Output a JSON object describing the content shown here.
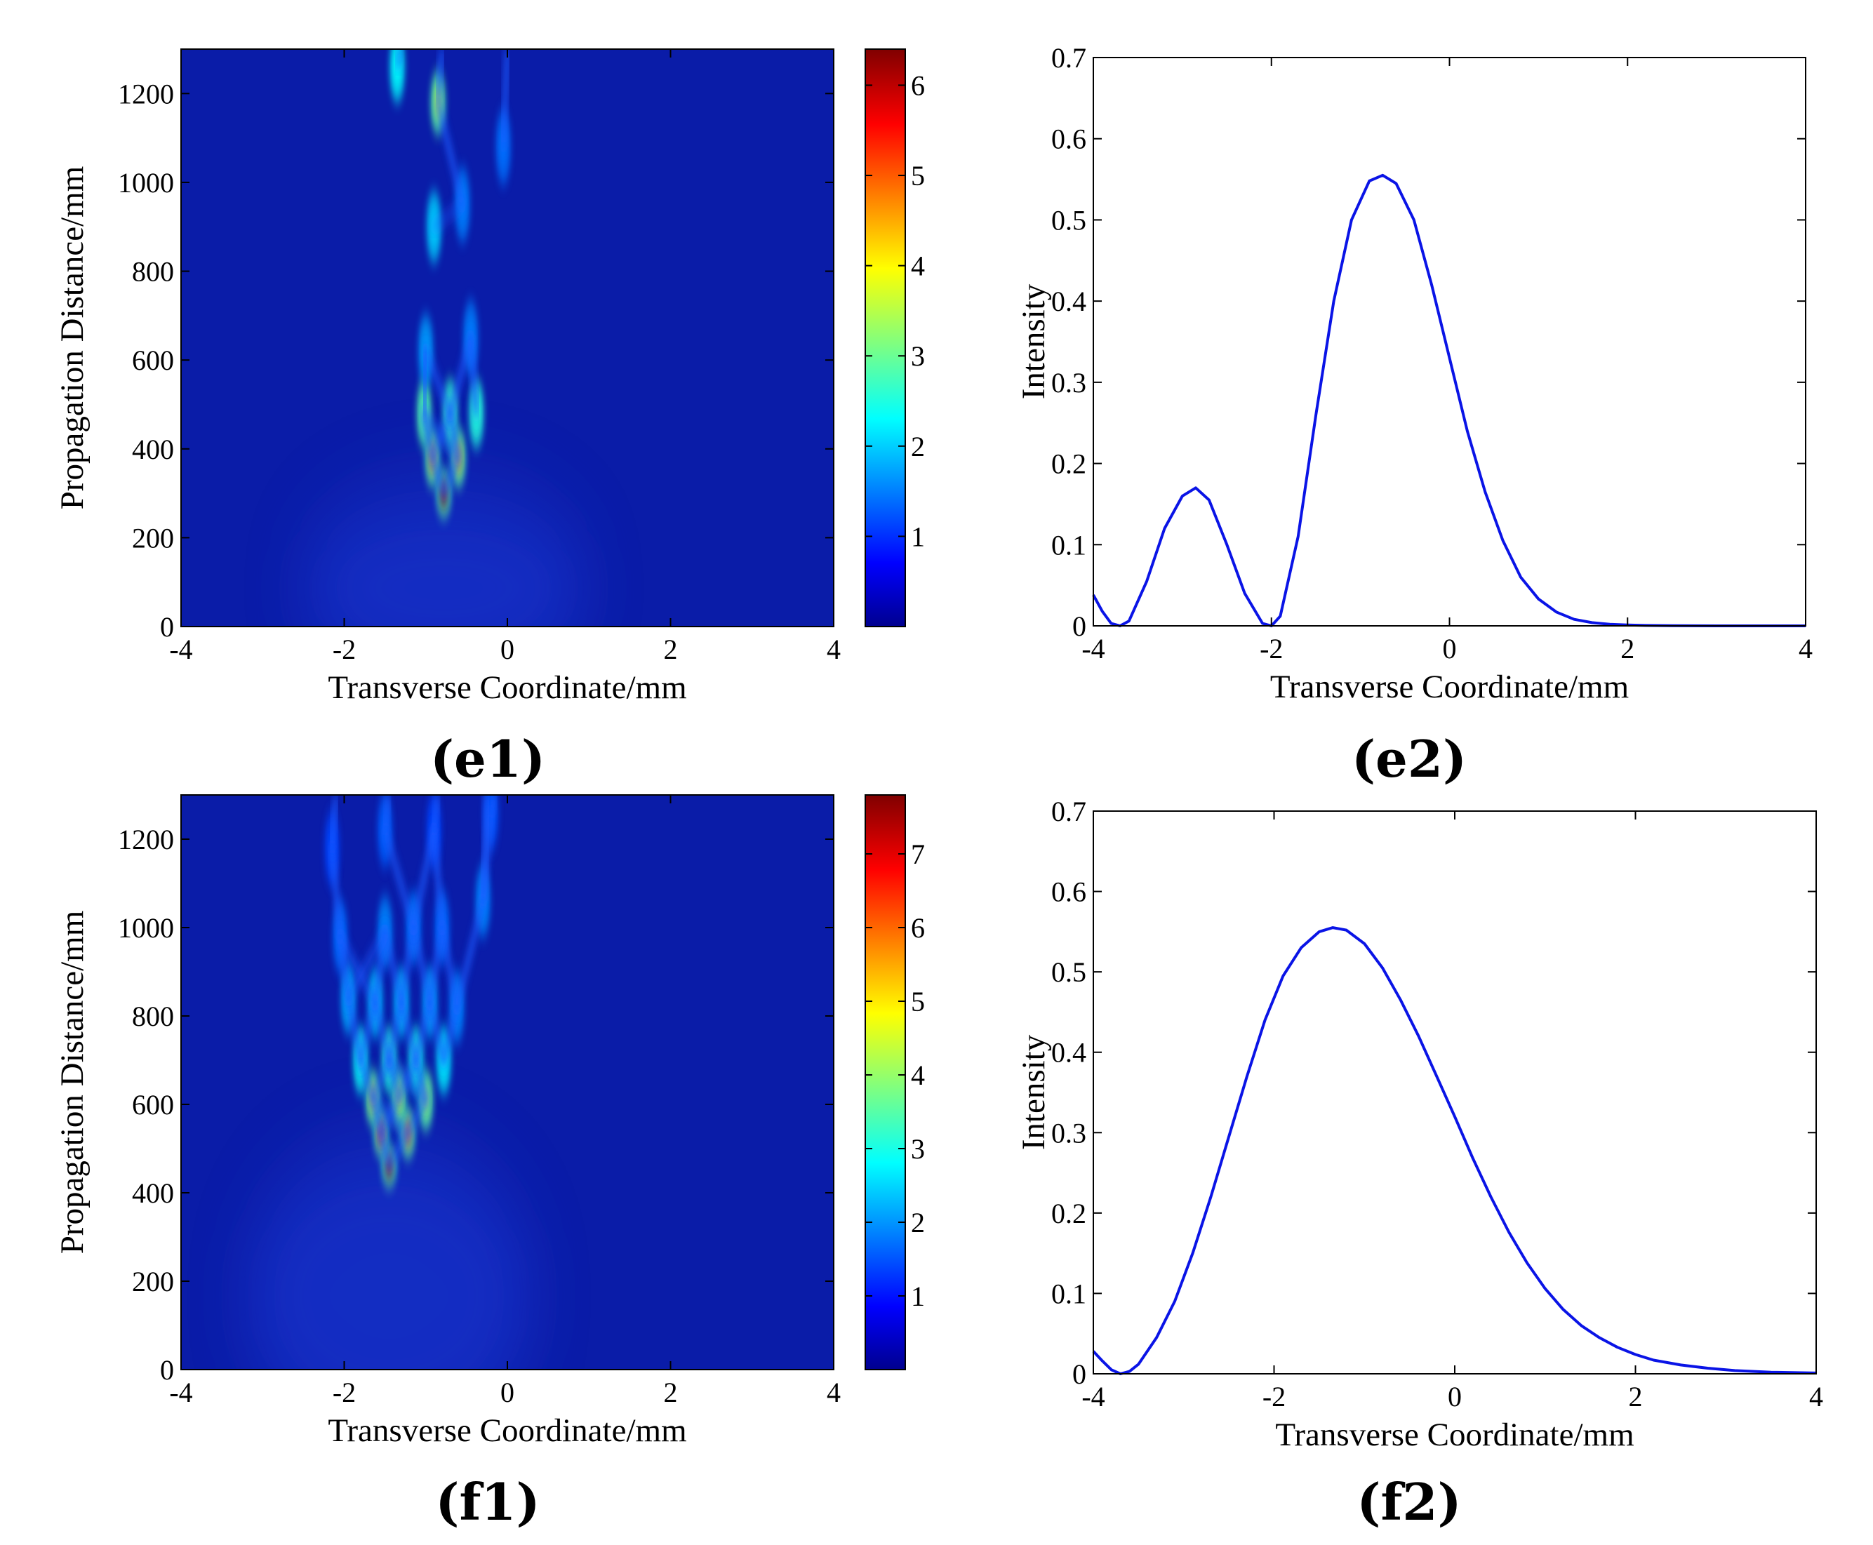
{
  "chart_data": [
    {
      "panel": "(e1)",
      "type": "heatmap",
      "xlabel": "Transverse Coordinate/mm",
      "ylabel": "Propagation Distance/mm",
      "xlim": [
        -4,
        4
      ],
      "ylim": [
        0,
        1300
      ],
      "xticks": [
        -4,
        -2,
        0,
        2,
        4
      ],
      "yticks": [
        0,
        200,
        400,
        600,
        800,
        1000,
        1200
      ],
      "colorbar": {
        "min": 0,
        "max": 6.4,
        "ticks": [
          1,
          2,
          3,
          4,
          5,
          6
        ],
        "colormap": "jet"
      },
      "focus_z": 300,
      "peaks": [
        {
          "x": -0.78,
          "z": 300,
          "i": 6.3
        },
        {
          "x": -0.92,
          "z": 380,
          "i": 4.6
        },
        {
          "x": -0.6,
          "z": 380,
          "i": 4.4
        },
        {
          "x": -1.02,
          "z": 480,
          "i": 2.9
        },
        {
          "x": -0.7,
          "z": 480,
          "i": 2.7
        },
        {
          "x": -0.38,
          "z": 480,
          "i": 2.6
        },
        {
          "x": -1.0,
          "z": 620,
          "i": 1.8
        },
        {
          "x": -0.45,
          "z": 650,
          "i": 1.6
        },
        {
          "x": -0.9,
          "z": 900,
          "i": 2.1
        },
        {
          "x": -0.55,
          "z": 950,
          "i": 1.6
        },
        {
          "x": -0.85,
          "z": 1180,
          "i": 3.6
        },
        {
          "x": -1.35,
          "z": 1260,
          "i": 2.4
        },
        {
          "x": -0.05,
          "z": 1080,
          "i": 1.5
        }
      ]
    },
    {
      "panel": "(e2)",
      "type": "line",
      "xlabel": "Transverse Coordinate/mm",
      "ylabel": "Intensity",
      "xlim": [
        -4,
        4
      ],
      "ylim": [
        0,
        0.7
      ],
      "xticks": [
        -4,
        -2,
        0,
        2,
        4
      ],
      "yticks": [
        0,
        0.1,
        0.2,
        0.3,
        0.4,
        0.5,
        0.6,
        0.7
      ],
      "series": [
        {
          "color": "#0a14e6",
          "x": [
            -4.0,
            -3.9,
            -3.8,
            -3.7,
            -3.6,
            -3.4,
            -3.2,
            -3.0,
            -2.85,
            -2.7,
            -2.5,
            -2.3,
            -2.1,
            -2.0,
            -1.9,
            -1.7,
            -1.5,
            -1.3,
            -1.1,
            -0.9,
            -0.75,
            -0.6,
            -0.4,
            -0.2,
            0.0,
            0.2,
            0.4,
            0.6,
            0.8,
            1.0,
            1.2,
            1.4,
            1.6,
            1.8,
            2.0,
            2.2,
            2.5,
            3.0,
            3.5,
            4.0
          ],
          "y": [
            0.038,
            0.018,
            0.003,
            0.0,
            0.006,
            0.055,
            0.12,
            0.16,
            0.17,
            0.155,
            0.1,
            0.04,
            0.003,
            0.0,
            0.012,
            0.11,
            0.26,
            0.4,
            0.5,
            0.548,
            0.555,
            0.545,
            0.5,
            0.42,
            0.33,
            0.24,
            0.165,
            0.105,
            0.06,
            0.033,
            0.017,
            0.008,
            0.004,
            0.002,
            0.001,
            0.0005,
            0.0002,
            0.0,
            0.0,
            0.0
          ]
        }
      ]
    },
    {
      "panel": "(f1)",
      "type": "heatmap",
      "xlabel": "Transverse Coordinate/mm",
      "ylabel": "Propagation Distance/mm",
      "xlim": [
        -4,
        4
      ],
      "ylim": [
        0,
        1300
      ],
      "xticks": [
        -4,
        -2,
        0,
        2,
        4
      ],
      "yticks": [
        0,
        200,
        400,
        600,
        800,
        1000,
        1200
      ],
      "colorbar": {
        "min": 0,
        "max": 7.8,
        "ticks": [
          1,
          2,
          3,
          4,
          5,
          6,
          7
        ],
        "colormap": "jet"
      },
      "focus_z": 460,
      "peaks": [
        {
          "x": -1.45,
          "z": 460,
          "i": 7.6
        },
        {
          "x": -1.55,
          "z": 535,
          "i": 6.5
        },
        {
          "x": -1.22,
          "z": 535,
          "i": 6.0
        },
        {
          "x": -1.65,
          "z": 615,
          "i": 5.0
        },
        {
          "x": -1.33,
          "z": 615,
          "i": 4.6
        },
        {
          "x": -1.0,
          "z": 610,
          "i": 4.2
        },
        {
          "x": -1.8,
          "z": 700,
          "i": 3.0
        },
        {
          "x": -1.45,
          "z": 700,
          "i": 3.2
        },
        {
          "x": -1.12,
          "z": 700,
          "i": 3.1
        },
        {
          "x": -0.78,
          "z": 700,
          "i": 2.8
        },
        {
          "x": -1.95,
          "z": 840,
          "i": 2.3
        },
        {
          "x": -1.62,
          "z": 830,
          "i": 2.5
        },
        {
          "x": -1.3,
          "z": 830,
          "i": 2.5
        },
        {
          "x": -0.95,
          "z": 830,
          "i": 2.3
        },
        {
          "x": -0.62,
          "z": 820,
          "i": 2.0
        },
        {
          "x": -2.05,
          "z": 980,
          "i": 1.8
        },
        {
          "x": -1.5,
          "z": 990,
          "i": 2.0
        },
        {
          "x": -1.15,
          "z": 1000,
          "i": 1.9
        },
        {
          "x": -0.8,
          "z": 1000,
          "i": 1.8
        },
        {
          "x": -0.3,
          "z": 1060,
          "i": 2.0
        },
        {
          "x": -2.15,
          "z": 1180,
          "i": 1.5
        },
        {
          "x": -1.5,
          "z": 1220,
          "i": 1.7
        },
        {
          "x": -0.9,
          "z": 1220,
          "i": 1.5
        },
        {
          "x": -0.2,
          "z": 1260,
          "i": 1.6
        }
      ]
    },
    {
      "panel": "(f2)",
      "type": "line",
      "xlabel": "Transverse Coordinate/mm",
      "ylabel": "Intensity",
      "xlim": [
        -4,
        4
      ],
      "ylim": [
        0,
        0.7
      ],
      "xticks": [
        -4,
        -2,
        0,
        2,
        4
      ],
      "yticks": [
        0,
        0.1,
        0.2,
        0.3,
        0.4,
        0.5,
        0.6,
        0.7
      ],
      "series": [
        {
          "color": "#0a14e6",
          "x": [
            -4.0,
            -3.9,
            -3.8,
            -3.7,
            -3.6,
            -3.5,
            -3.3,
            -3.1,
            -2.9,
            -2.7,
            -2.5,
            -2.3,
            -2.1,
            -1.9,
            -1.7,
            -1.5,
            -1.35,
            -1.2,
            -1.0,
            -0.8,
            -0.6,
            -0.4,
            -0.2,
            0.0,
            0.2,
            0.4,
            0.6,
            0.8,
            1.0,
            1.2,
            1.4,
            1.6,
            1.8,
            2.0,
            2.2,
            2.5,
            2.8,
            3.1,
            3.5,
            4.0
          ],
          "y": [
            0.028,
            0.016,
            0.005,
            0.0,
            0.003,
            0.012,
            0.045,
            0.09,
            0.15,
            0.22,
            0.295,
            0.37,
            0.44,
            0.495,
            0.53,
            0.55,
            0.555,
            0.552,
            0.535,
            0.505,
            0.465,
            0.42,
            0.37,
            0.32,
            0.268,
            0.22,
            0.176,
            0.138,
            0.106,
            0.08,
            0.06,
            0.045,
            0.033,
            0.024,
            0.017,
            0.011,
            0.007,
            0.004,
            0.002,
            0.001
          ]
        }
      ]
    }
  ]
}
